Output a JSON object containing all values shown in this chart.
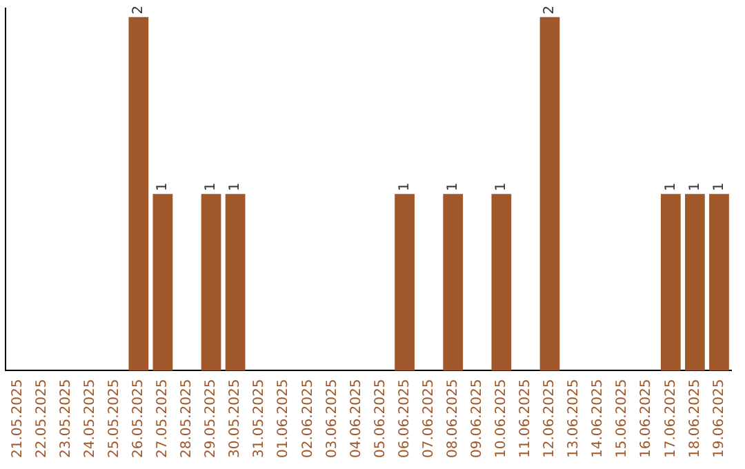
{
  "chart_data": {
    "type": "bar",
    "categories": [
      "21.05.2025",
      "22.05.2025",
      "23.05.2025",
      "24.05.2025",
      "25.05.2025",
      "26.05.2025",
      "27.05.2025",
      "28.05.2025",
      "29.05.2025",
      "30.05.2025",
      "31.05.2025",
      "01.06.2025",
      "02.06.2025",
      "03.06.2025",
      "04.06.2025",
      "05.06.2025",
      "06.06.2025",
      "07.06.2025",
      "08.06.2025",
      "09.06.2025",
      "10.06.2025",
      "11.06.2025",
      "12.06.2025",
      "13.06.2025",
      "14.06.2025",
      "15.06.2025",
      "16.06.2025",
      "17.06.2025",
      "18.06.2025",
      "19.06.2025"
    ],
    "values": [
      null,
      null,
      null,
      null,
      null,
      2,
      1,
      null,
      1,
      1,
      null,
      null,
      null,
      null,
      null,
      null,
      1,
      null,
      1,
      null,
      1,
      null,
      2,
      null,
      null,
      null,
      null,
      1,
      1,
      1
    ],
    "color": "#a0572a",
    "ylim": [
      0,
      2.05
    ],
    "tick_labels": "x",
    "data_labels": true,
    "grid": false,
    "legend": false
  }
}
